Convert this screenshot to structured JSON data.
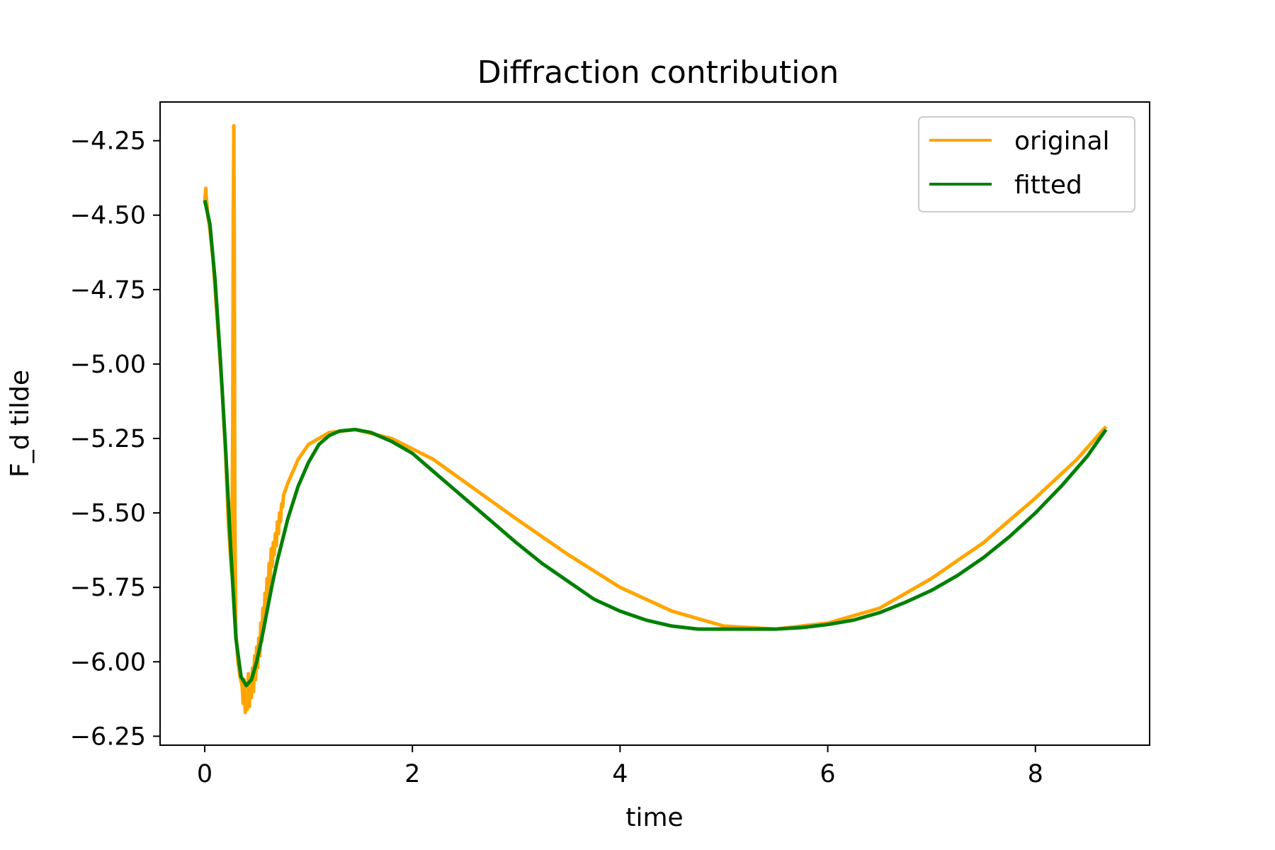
{
  "chart_data": {
    "type": "line",
    "title": "Diffraction contribution",
    "xlabel": "time",
    "ylabel": "F_d tilde",
    "xlim": [
      -0.43,
      9.1
    ],
    "ylim": [
      -6.28,
      -4.12
    ],
    "xticks": [
      0,
      2,
      4,
      6,
      8
    ],
    "xtick_labels": [
      "0",
      "2",
      "4",
      "6",
      "8"
    ],
    "yticks": [
      -4.25,
      -4.5,
      -4.75,
      -5.0,
      -5.25,
      -5.5,
      -5.75,
      -6.0,
      -6.25
    ],
    "ytick_labels": [
      "−4.25",
      "−4.50",
      "−4.75",
      "−5.00",
      "−5.25",
      "−5.50",
      "−5.75",
      "−6.00",
      "−6.25"
    ],
    "grid": false,
    "legend_position": "top-right",
    "series": [
      {
        "name": "original",
        "color": "#ffa500",
        "x": [
          0.0,
          0.005,
          0.01,
          0.015,
          0.02,
          0.03,
          0.05,
          0.08,
          0.11,
          0.14,
          0.17,
          0.2,
          0.23,
          0.26,
          0.27,
          0.275,
          0.28,
          0.285,
          0.29,
          0.3,
          0.32,
          0.34,
          0.36,
          0.37,
          0.38,
          0.39,
          0.4,
          0.41,
          0.42,
          0.43,
          0.44,
          0.45,
          0.46,
          0.47,
          0.48,
          0.49,
          0.5,
          0.51,
          0.52,
          0.53,
          0.54,
          0.55,
          0.56,
          0.57,
          0.58,
          0.59,
          0.6,
          0.61,
          0.62,
          0.63,
          0.64,
          0.65,
          0.66,
          0.67,
          0.68,
          0.69,
          0.7,
          0.71,
          0.72,
          0.73,
          0.74,
          0.75,
          0.76,
          0.78,
          0.8,
          0.9,
          1.0,
          1.2,
          1.45,
          1.8,
          2.2,
          2.6,
          3.0,
          3.5,
          4.0,
          4.5,
          5.0,
          5.5,
          6.0,
          6.5,
          7.0,
          7.5,
          8.0,
          8.4,
          8.68
        ],
        "y": [
          -4.45,
          -4.43,
          -4.41,
          -4.44,
          -4.46,
          -4.5,
          -4.55,
          -4.65,
          -4.8,
          -4.95,
          -5.1,
          -5.3,
          -5.55,
          -5.7,
          -5.2,
          -4.5,
          -4.2,
          -4.6,
          -5.5,
          -5.9,
          -6.0,
          -6.05,
          -6.08,
          -6.14,
          -6.06,
          -6.17,
          -6.09,
          -6.16,
          -6.04,
          -6.15,
          -6.06,
          -6.12,
          -6.02,
          -6.1,
          -5.98,
          -6.06,
          -5.95,
          -6.02,
          -5.92,
          -5.98,
          -5.87,
          -5.93,
          -5.82,
          -5.88,
          -5.77,
          -5.83,
          -5.72,
          -5.78,
          -5.67,
          -5.73,
          -5.62,
          -5.68,
          -5.6,
          -5.64,
          -5.57,
          -5.61,
          -5.53,
          -5.57,
          -5.5,
          -5.53,
          -5.47,
          -5.48,
          -5.44,
          -5.42,
          -5.4,
          -5.32,
          -5.27,
          -5.23,
          -5.22,
          -5.25,
          -5.32,
          -5.42,
          -5.52,
          -5.64,
          -5.75,
          -5.83,
          -5.88,
          -5.89,
          -5.87,
          -5.82,
          -5.72,
          -5.6,
          -5.45,
          -5.32,
          -5.21
        ]
      },
      {
        "name": "fitted",
        "color": "#008000",
        "x": [
          0.0,
          0.05,
          0.1,
          0.15,
          0.2,
          0.25,
          0.3,
          0.35,
          0.4,
          0.45,
          0.5,
          0.55,
          0.6,
          0.65,
          0.7,
          0.8,
          0.9,
          1.0,
          1.1,
          1.2,
          1.3,
          1.45,
          1.6,
          1.8,
          2.0,
          2.2,
          2.4,
          2.6,
          2.8,
          3.0,
          3.25,
          3.5,
          3.75,
          4.0,
          4.25,
          4.5,
          4.75,
          5.0,
          5.25,
          5.5,
          5.75,
          6.0,
          6.25,
          6.5,
          6.75,
          7.0,
          7.25,
          7.5,
          7.75,
          8.0,
          8.25,
          8.5,
          8.68
        ],
        "y": [
          -4.45,
          -4.53,
          -4.72,
          -4.98,
          -5.28,
          -5.62,
          -5.92,
          -6.05,
          -6.08,
          -6.06,
          -6.0,
          -5.92,
          -5.83,
          -5.74,
          -5.66,
          -5.52,
          -5.41,
          -5.33,
          -5.27,
          -5.24,
          -5.225,
          -5.22,
          -5.23,
          -5.26,
          -5.3,
          -5.36,
          -5.42,
          -5.48,
          -5.54,
          -5.6,
          -5.67,
          -5.73,
          -5.79,
          -5.83,
          -5.86,
          -5.88,
          -5.89,
          -5.89,
          -5.89,
          -5.89,
          -5.885,
          -5.875,
          -5.86,
          -5.835,
          -5.8,
          -5.76,
          -5.71,
          -5.65,
          -5.58,
          -5.5,
          -5.41,
          -5.31,
          -5.22
        ]
      }
    ]
  }
}
